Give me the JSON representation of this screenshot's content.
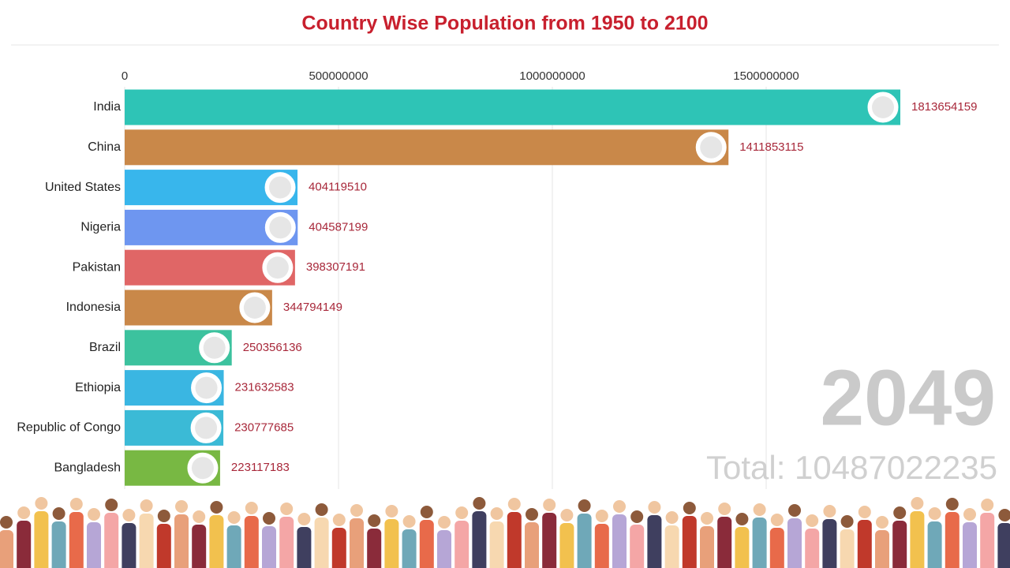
{
  "chart_data": {
    "type": "bar",
    "orientation": "horizontal",
    "title": "Country Wise Population from 1950 to 2100",
    "categories": [
      "India",
      "China",
      "United States",
      "Nigeria",
      "Pakistan",
      "Indonesia",
      "Brazil",
      "Ethiopia",
      "Republic of Congo",
      "Bangladesh"
    ],
    "values": [
      1813654159,
      1411853115,
      404119510,
      404587199,
      398307191,
      344794149,
      250356136,
      231632583,
      230777685,
      223117183
    ],
    "colors": [
      "#2ec4b6",
      "#c98849",
      "#38b6ec",
      "#6e96f0",
      "#e06666",
      "#c98849",
      "#3cc29e",
      "#3ab6e2",
      "#3bbad6",
      "#78b843"
    ],
    "xlim": [
      0,
      2000000000
    ],
    "xticks": [
      0,
      500000000,
      1000000000,
      1500000000
    ],
    "grid": true,
    "year": "2049",
    "total": "Total: 10487022235"
  }
}
